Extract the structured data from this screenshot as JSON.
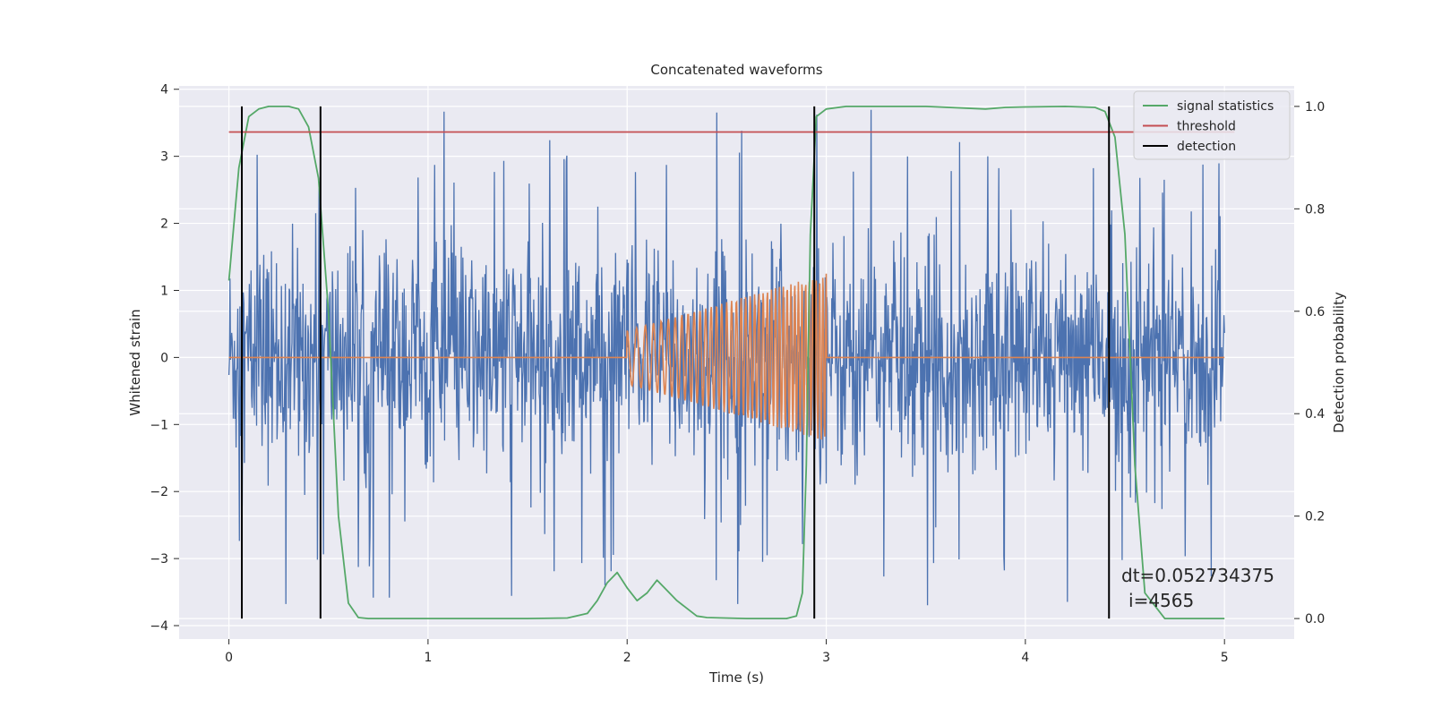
{
  "chart_data": {
    "type": "line",
    "title": "Concatenated waveforms",
    "xlabel": "Time (s)",
    "ylabel": "Whitened strain",
    "y2label": "Detection probability",
    "xlim": [
      -0.25,
      5.35
    ],
    "ylim": [
      -4.2,
      4.05
    ],
    "y2lim": [
      -0.04,
      1.04
    ],
    "xticks": [
      0,
      1,
      2,
      3,
      4,
      5
    ],
    "yticks": [
      -4,
      -3,
      -2,
      -1,
      0,
      1,
      2,
      3,
      4
    ],
    "y2ticks": [
      0.0,
      0.2,
      0.4,
      0.6,
      0.8,
      1.0
    ],
    "y2ticklabels": [
      "0.0",
      "0.2",
      "0.4",
      "0.6",
      "0.8",
      "1.0"
    ],
    "grid": true,
    "legend_position": "top-right",
    "series": [
      {
        "name": "",
        "kind": "noisy strain",
        "color": "#4c72b0",
        "axis": "left",
        "x_range": [
          0,
          5
        ],
        "typical_amplitude": 1.3,
        "peak_amplitude": 3.7
      },
      {
        "name": "",
        "kind": "injected chirp",
        "color": "#dd8452",
        "axis": "left",
        "x_range": [
          0,
          5
        ],
        "chirp_start": 2.0,
        "chirp_end": 3.0,
        "amplitude_start": 0.4,
        "amplitude_end": 1.25
      },
      {
        "name": "signal statistics",
        "color": "#55a868",
        "axis": "right",
        "x": [
          0.0,
          0.05,
          0.1,
          0.15,
          0.2,
          0.25,
          0.3,
          0.35,
          0.4,
          0.45,
          0.5,
          0.55,
          0.6,
          0.65,
          0.7,
          1.0,
          1.5,
          1.7,
          1.8,
          1.85,
          1.9,
          1.95,
          2.0,
          2.05,
          2.1,
          2.15,
          2.2,
          2.25,
          2.3,
          2.35,
          2.4,
          2.6,
          2.8,
          2.85,
          2.88,
          2.9,
          2.92,
          2.95,
          3.0,
          3.1,
          3.3,
          3.5,
          3.8,
          3.9,
          4.0,
          4.2,
          4.35,
          4.4,
          4.45,
          4.5,
          4.55,
          4.6,
          4.7,
          5.0
        ],
        "values": [
          0.66,
          0.88,
          0.98,
          0.995,
          1.0,
          1.0,
          1.0,
          0.995,
          0.96,
          0.86,
          0.6,
          0.2,
          0.03,
          0.002,
          0.0,
          0.0,
          0.0,
          0.001,
          0.01,
          0.035,
          0.07,
          0.09,
          0.06,
          0.035,
          0.05,
          0.075,
          0.055,
          0.035,
          0.02,
          0.005,
          0.002,
          0.0,
          0.0,
          0.005,
          0.05,
          0.3,
          0.75,
          0.98,
          0.995,
          1.0,
          1.0,
          1.0,
          0.995,
          0.998,
          0.999,
          1.0,
          0.998,
          0.99,
          0.94,
          0.75,
          0.3,
          0.05,
          0.0,
          0.0
        ]
      },
      {
        "name": "threshold",
        "color": "#c44e52",
        "axis": "right",
        "x": [
          0,
          5.05
        ],
        "values": [
          0.95,
          0.95
        ]
      }
    ],
    "detections": {
      "name": "detection",
      "color": "#000000",
      "x": [
        0.065,
        0.46,
        2.94,
        4.42
      ],
      "y2_range": [
        0.0,
        1.0
      ]
    },
    "legend": [
      "signal statistics",
      "threshold",
      "detection"
    ],
    "annotation": {
      "line1": "dt=0.052734375",
      "line2": "i=4565",
      "x": 4.5,
      "y": -3.25
    }
  }
}
